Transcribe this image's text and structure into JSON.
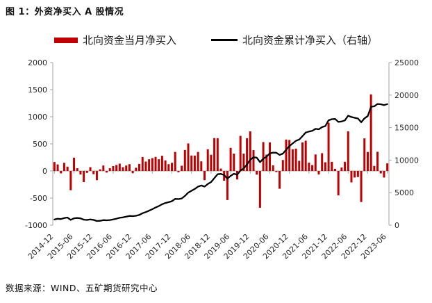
{
  "figure_title": "图 1：外资净买入 A 股情况",
  "source_note": "数据来源：WIND、五矿期货研究中心",
  "chart_data": {
    "type": "bar+line combo, dual y-axis",
    "x_start": "2014-12",
    "x_interval": "monthly",
    "series": [
      {
        "name": "北向资金当月净买入",
        "type": "bar",
        "axis": "left",
        "color": "#c00000",
        "values": [
          165,
          120,
          -45,
          150,
          80,
          -355,
          245,
          50,
          -65,
          -205,
          -35,
          70,
          -60,
          -170,
          30,
          100,
          -30,
          50,
          90,
          110,
          135,
          70,
          100,
          125,
          -40,
          60,
          130,
          258,
          173,
          216,
          237,
          259,
          216,
          280,
          194,
          125,
          150,
          351,
          -25,
          97,
          387,
          508,
          285,
          284,
          350,
          177,
          -170,
          400,
          298,
          607,
          604,
          44,
          -180,
          -537,
          426,
          320,
          -157,
          647,
          320,
          604,
          730,
          384,
          -68,
          -679,
          533,
          301,
          527,
          104,
          -21,
          -328,
          202,
          579,
          572,
          400,
          412,
          187,
          526,
          558,
          153,
          108,
          304,
          -65,
          328,
          160,
          890,
          168,
          40,
          -451,
          63,
          169,
          730,
          -211,
          -121,
          -112,
          -573,
          601,
          350,
          1413,
          93,
          354,
          -46,
          -121,
          140
        ]
      },
      {
        "name": "北向资金累计净买入（右轴）",
        "type": "line",
        "axis": "right",
        "color": "#000000",
        "derivation": "cumulative_base plus running sum of bar series",
        "cumulative_base": 700
      }
    ],
    "left_axis": {
      "min": -1000,
      "max": 2000,
      "ticks": [
        2000,
        1500,
        1000,
        500,
        0,
        -500,
        -1000
      ]
    },
    "right_axis": {
      "min": 0,
      "max": 25000,
      "ticks": [
        25000,
        20000,
        15000,
        10000,
        5000,
        0
      ]
    },
    "x_tick_month_indices": [
      0,
      6,
      12,
      18,
      24,
      30,
      36,
      42,
      48,
      54,
      60,
      66,
      72,
      78,
      84,
      90,
      96,
      102
    ],
    "x_tick_labels": [
      "2014-12",
      "2015-06",
      "2015-12",
      "2016-06",
      "2016-12",
      "2017-06",
      "2017-12",
      "2018-06",
      "2018-12",
      "2019-06",
      "2019-12",
      "2020-06",
      "2020-12",
      "2021-06",
      "2021-12",
      "2022-06",
      "2022-12",
      "2023-06"
    ],
    "grid": "none",
    "legend_position": "top-center",
    "axis_line_color": "#a6a6a6",
    "tick_label_color": "#262626"
  }
}
